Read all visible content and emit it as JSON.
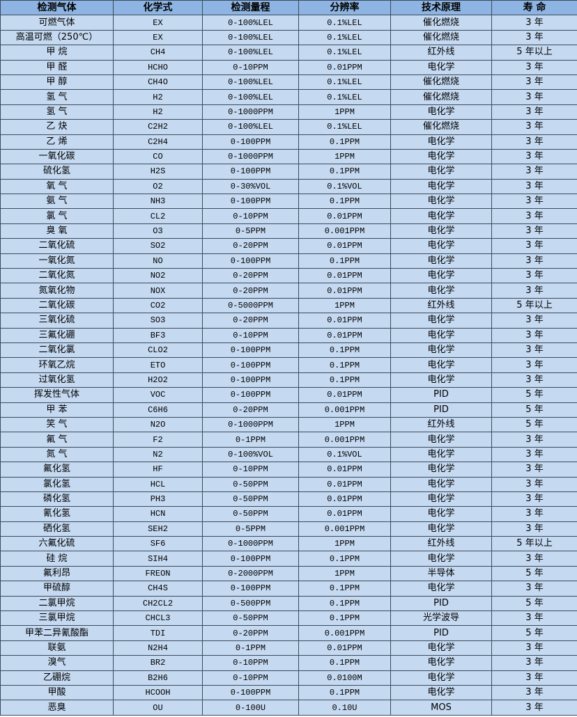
{
  "header": [
    "检测气体",
    "化学式",
    "检测量程",
    "分辨率",
    "技术原理",
    "寿 命"
  ],
  "rows": [
    [
      "可燃气体",
      "EX",
      "0-100%LEL",
      "0.1%LEL",
      "催化燃烧",
      "3 年"
    ],
    [
      "高温可燃（250℃）",
      "EX",
      "0-100%LEL",
      "0.1%LEL",
      "催化燃烧",
      "3 年"
    ],
    [
      "甲 烷",
      "CH4",
      "0-100%LEL",
      "0.1%LEL",
      "红外线",
      "5 年以上"
    ],
    [
      "甲 醛",
      "HCHO",
      "0-10PPM",
      "0.01PPM",
      "电化学",
      "3 年"
    ],
    [
      "甲 醇",
      "CH4O",
      "0-100%LEL",
      "0.1%LEL",
      "催化燃烧",
      "3 年"
    ],
    [
      "氢 气",
      "H2",
      "0-100%LEL",
      "0.1%LEL",
      "催化燃烧",
      "3 年"
    ],
    [
      "氢 气",
      "H2",
      "0-1000PPM",
      "1PPM",
      "电化学",
      "3 年"
    ],
    [
      "乙 炔",
      "C2H2",
      "0-100%LEL",
      "0.1%LEL",
      "催化燃烧",
      "3 年"
    ],
    [
      "乙 烯",
      "C2H4",
      "0-100PPM",
      "0.1PPM",
      "电化学",
      "3 年"
    ],
    [
      "一氧化碳",
      "CO",
      "0-1000PPM",
      "1PPM",
      "电化学",
      "3 年"
    ],
    [
      "硫化氢",
      "H2S",
      "0-100PPM",
      "0.1PPM",
      "电化学",
      "3 年"
    ],
    [
      "氧 气",
      "O2",
      "0-30%VOL",
      "0.1%VOL",
      "电化学",
      "3 年"
    ],
    [
      "氨 气",
      "NH3",
      "0-100PPM",
      "0.1PPM",
      "电化学",
      "3 年"
    ],
    [
      "氯 气",
      "CL2",
      "0-10PPM",
      "0.01PPM",
      "电化学",
      "3 年"
    ],
    [
      "臭 氧",
      "O3",
      "0-5PPM",
      "0.001PPM",
      "电化学",
      "3 年"
    ],
    [
      "二氧化硫",
      "SO2",
      "0-20PPM",
      "0.01PPM",
      "电化学",
      "3 年"
    ],
    [
      "一氧化氮",
      "NO",
      "0-100PPM",
      "0.1PPM",
      "电化学",
      "3 年"
    ],
    [
      "二氧化氮",
      "NO2",
      "0-20PPM",
      "0.01PPM",
      "电化学",
      "3 年"
    ],
    [
      "氮氧化物",
      "NOX",
      "0-20PPM",
      "0.01PPM",
      "电化学",
      "3 年"
    ],
    [
      "二氧化碳",
      "CO2",
      "0-5000PPM",
      "1PPM",
      "红外线",
      "5 年以上"
    ],
    [
      "三氧化硫",
      "SO3",
      "0-20PPM",
      "0.01PPM",
      "电化学",
      "3 年"
    ],
    [
      "三氟化硼",
      "BF3",
      "0-10PPM",
      "0.01PPM",
      "电化学",
      "3 年"
    ],
    [
      "二氧化氯",
      "CLO2",
      "0-100PPM",
      "0.1PPM",
      "电化学",
      "3 年"
    ],
    [
      "环氧乙烷",
      "ETO",
      "0-100PPM",
      "0.1PPM",
      "电化学",
      "3 年"
    ],
    [
      "过氧化氢",
      "H2O2",
      "0-100PPM",
      "0.1PPM",
      "电化学",
      "3 年"
    ],
    [
      "挥发性气体",
      "VOC",
      "0-100PPM",
      "0.01PPM",
      "PID",
      "5 年"
    ],
    [
      "甲 苯",
      "C6H6",
      "0-20PPM",
      "0.001PPM",
      "PID",
      "5 年"
    ],
    [
      "笑 气",
      "N2O",
      "0-1000PPM",
      "1PPM",
      "红外线",
      "5 年"
    ],
    [
      "氟 气",
      "F2",
      "0-1PPM",
      "0.001PPM",
      "电化学",
      "3 年"
    ],
    [
      "氮 气",
      "N2",
      "0-100%VOL",
      "0.1%VOL",
      "电化学",
      "3 年"
    ],
    [
      "氟化氢",
      "HF",
      "0-10PPM",
      "0.01PPM",
      "电化学",
      "3 年"
    ],
    [
      "氯化氢",
      "HCL",
      "0-50PPM",
      "0.01PPM",
      "电化学",
      "3 年"
    ],
    [
      "磷化氢",
      "PH3",
      "0-50PPM",
      "0.01PPM",
      "电化学",
      "3 年"
    ],
    [
      "氰化氢",
      "HCN",
      "0-50PPM",
      "0.01PPM",
      "电化学",
      "3 年"
    ],
    [
      "硒化氢",
      "SEH2",
      "0-5PPM",
      "0.001PPM",
      "电化学",
      "3 年"
    ],
    [
      "六氟化硫",
      "SF6",
      "0-1000PPM",
      "1PPM",
      "红外线",
      "5 年以上"
    ],
    [
      "硅 烷",
      "SIH4",
      "0-100PPM",
      "0.1PPM",
      "电化学",
      "3 年"
    ],
    [
      "氟利昂",
      "FREON",
      "0-2000PPM",
      "1PPM",
      "半导体",
      "5 年"
    ],
    [
      "甲硫醇",
      "CH4S",
      "0-100PPM",
      "0.1PPM",
      "电化学",
      "3 年"
    ],
    [
      "二氯甲烷",
      "CH2CL2",
      "0-500PPM",
      "0.1PPM",
      "PID",
      "5 年"
    ],
    [
      "三氯甲烷",
      "CHCL3",
      "0-50PPM",
      "0.1PPM",
      "光学波导",
      "3 年"
    ],
    [
      "甲苯二异氰酸酯",
      "TDI",
      "0-20PPM",
      "0.001PPM",
      "PID",
      "5 年"
    ],
    [
      "联氨",
      "N2H4",
      "0-1PPM",
      "0.01PPM",
      "电化学",
      "3 年"
    ],
    [
      "溴气",
      "BR2",
      "0-10PPM",
      "0.1PPM",
      "电化学",
      "3 年"
    ],
    [
      "乙硼烷",
      "B2H6",
      "0-10PPM",
      "0.0100M",
      "电化学",
      "3 年"
    ],
    [
      "甲酸",
      "HCOOH",
      "0-100PPM",
      "0.1PPM",
      "电化学",
      "3 年"
    ],
    [
      "恶臭",
      "OU",
      "0-100U",
      "0.10U",
      "MOS",
      "3 年"
    ]
  ]
}
